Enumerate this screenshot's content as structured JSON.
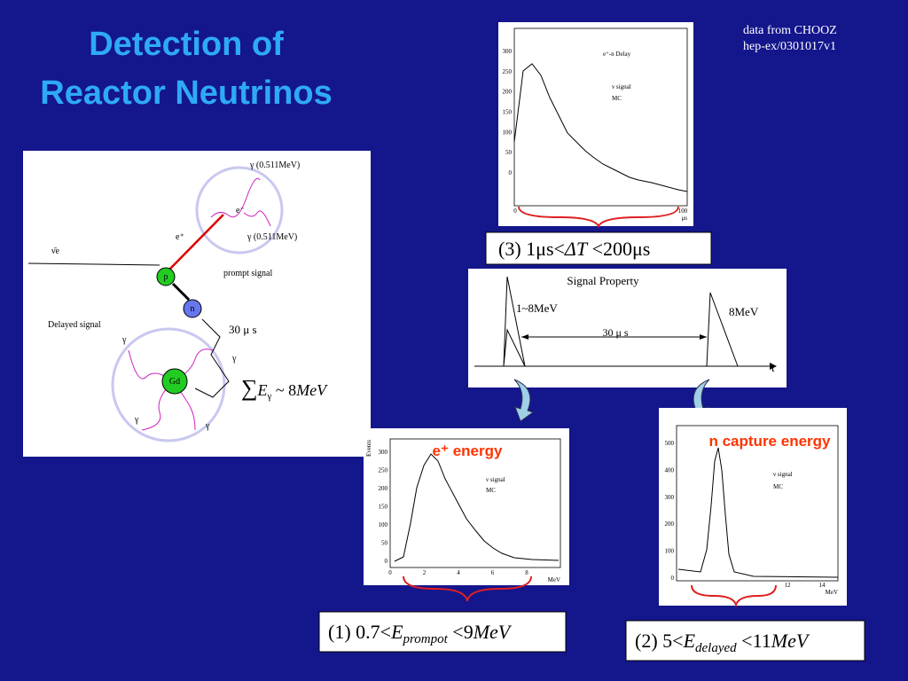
{
  "title": [
    "Detection of",
    "Reactor Neutrinos"
  ],
  "source": [
    "data from CHOOZ",
    "hep-ex/0301017v1"
  ],
  "diagram": {
    "gamma_top": "γ (0.511MeV)",
    "gamma_mid": "γ (0.511MeV)",
    "positron": "e⁺",
    "electron": "e⁻",
    "antineutrino": "ν̄e",
    "proton": "p",
    "neutron": "n",
    "gadolinium": "Gd",
    "prompt_signal": "prompt signal",
    "delayed_signal": "Delayed signal",
    "delay_time": "30 μ s",
    "gammas": [
      "γ",
      "γ",
      "γ",
      "γ"
    ],
    "energy_sum": {
      "symbol": "∑",
      "var": "E",
      "sub": "γ",
      "rest": " ~ 8",
      "unit": "MeV"
    }
  },
  "delay_plot": {
    "title": "e⁺-n Delay",
    "legend": [
      "ν signal",
      "MC"
    ],
    "yticks": [
      "0",
      "50",
      "100",
      "150",
      "200",
      "250",
      "300"
    ],
    "xticks": [
      "0",
      "100"
    ],
    "xunit": "μs"
  },
  "condition3": {
    "prefix": "(3) 1μs<",
    "var": "ΔT",
    "suffix": " <200μs"
  },
  "signal_property": {
    "title": "Signal Property",
    "prompt": "1~8MeV",
    "delayed": "8MeV",
    "gap": "30 μ s",
    "axis": "t"
  },
  "prompt_plot": {
    "label": "e⁺ energy",
    "ylabel": "Events",
    "legend": [
      "ν signal",
      "MC"
    ],
    "yticks": [
      "0",
      "50",
      "100",
      "150",
      "200",
      "250",
      "300"
    ],
    "xticks": [
      "0",
      "2",
      "4",
      "6",
      "8"
    ],
    "xunit": "MeV"
  },
  "condition1": {
    "prefix": "(1) 0.7<",
    "var": "E",
    "sub": "prompot",
    "suffix": " <9",
    "unit": "MeV"
  },
  "delayed_plot": {
    "label": "n capture energy",
    "legend": [
      "ν signal",
      "MC"
    ],
    "yticks": [
      "0",
      "100",
      "200",
      "300",
      "400",
      "500"
    ],
    "xticks": [
      "12",
      "14"
    ],
    "xunit": "MeV"
  },
  "condition2": {
    "prefix": "(2) 5<",
    "var": "E",
    "sub": "delayed",
    "suffix": " <11",
    "unit": "MeV"
  }
}
